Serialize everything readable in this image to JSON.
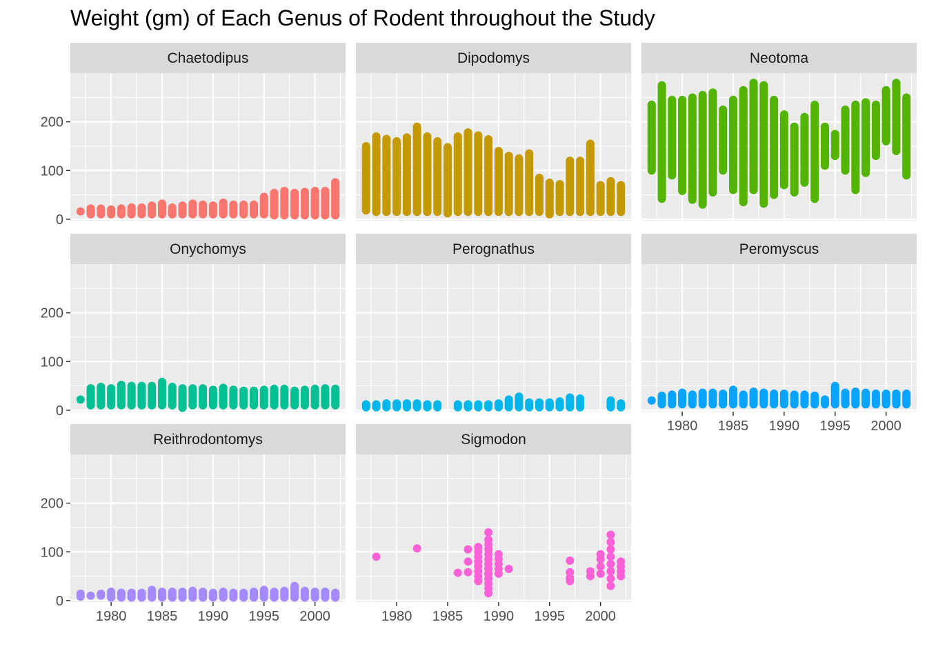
{
  "chart_data": {
    "type": "scatter",
    "title": "Weight (gm) of Each Genus of Rodent throughout the Study",
    "xlabel": "",
    "ylabel": "",
    "xlim": [
      1976,
      2003
    ],
    "ylim": [
      -3,
      300
    ],
    "x_ticks": [
      1980,
      1985,
      1990,
      1995,
      2000
    ],
    "y_ticks": [
      0,
      100,
      200
    ],
    "grid": true,
    "legend": "none",
    "panels": [
      {
        "name": "Chaetodipus",
        "color": "#F8766D",
        "x": [
          1977,
          1978,
          1979,
          1980,
          1981,
          1982,
          1983,
          1984,
          1985,
          1986,
          1987,
          1988,
          1989,
          1990,
          1991,
          1992,
          1993,
          1994,
          1995,
          1996,
          1997,
          1998,
          1999,
          2000,
          2001,
          2002
        ],
        "y_min": [
          16,
          10,
          10,
          10,
          10,
          10,
          10,
          10,
          10,
          10,
          10,
          10,
          10,
          10,
          10,
          10,
          10,
          10,
          10,
          8,
          8,
          8,
          8,
          8,
          8,
          8
        ],
        "y_max": [
          16,
          22,
          22,
          20,
          22,
          24,
          24,
          28,
          32,
          24,
          28,
          32,
          30,
          28,
          34,
          30,
          30,
          30,
          46,
          54,
          58,
          54,
          56,
          58,
          58,
          76
        ]
      },
      {
        "name": "Dipodomys",
        "color": "#C49A00",
        "x": [
          1977,
          1978,
          1979,
          1980,
          1981,
          1982,
          1983,
          1984,
          1985,
          1986,
          1987,
          1988,
          1989,
          1990,
          1991,
          1992,
          1993,
          1994,
          1995,
          1996,
          1997,
          1998,
          1999,
          2000,
          2001,
          2002
        ],
        "y_min": [
          18,
          15,
          15,
          15,
          15,
          15,
          15,
          15,
          12,
          15,
          15,
          15,
          15,
          15,
          15,
          15,
          15,
          15,
          10,
          15,
          15,
          15,
          15,
          15,
          15,
          15
        ],
        "y_max": [
          150,
          170,
          165,
          160,
          168,
          190,
          170,
          160,
          148,
          170,
          178,
          172,
          164,
          140,
          130,
          125,
          135,
          85,
          75,
          72,
          120,
          120,
          155,
          70,
          78,
          70
        ]
      },
      {
        "name": "Neotoma",
        "color": "#53B400",
        "x": [
          1977,
          1978,
          1979,
          1980,
          1981,
          1982,
          1983,
          1984,
          1985,
          1986,
          1987,
          1988,
          1989,
          1990,
          1991,
          1992,
          1993,
          1994,
          1995,
          1996,
          1997,
          1998,
          1999,
          2000,
          2001,
          2002
        ],
        "y_min": [
          100,
          42,
          90,
          58,
          40,
          30,
          55,
          100,
          60,
          35,
          60,
          32,
          50,
          70,
          55,
          75,
          42,
          110,
          130,
          100,
          60,
          95,
          130,
          160,
          140,
          90
        ],
        "y_max": [
          235,
          275,
          245,
          245,
          250,
          255,
          260,
          225,
          245,
          265,
          280,
          275,
          245,
          215,
          190,
          210,
          235,
          190,
          175,
          225,
          235,
          240,
          235,
          265,
          280,
          250
        ]
      },
      {
        "name": "Onychomys",
        "color": "#00C094",
        "x": [
          1977,
          1978,
          1979,
          1980,
          1981,
          1982,
          1983,
          1984,
          1985,
          1986,
          1987,
          1988,
          1989,
          1990,
          1991,
          1992,
          1993,
          1994,
          1995,
          1996,
          1997,
          1998,
          1999,
          2000,
          2001,
          2002
        ],
        "y_min": [
          22,
          10,
          10,
          10,
          10,
          10,
          10,
          10,
          10,
          10,
          5,
          10,
          10,
          10,
          10,
          10,
          10,
          10,
          10,
          10,
          10,
          10,
          10,
          10,
          10,
          10
        ],
        "y_max": [
          22,
          45,
          48,
          45,
          52,
          50,
          50,
          50,
          58,
          48,
          45,
          45,
          45,
          42,
          46,
          42,
          40,
          40,
          42,
          44,
          44,
          40,
          42,
          44,
          45,
          44
        ]
      },
      {
        "name": "Perognathus",
        "color": "#00B6EB",
        "x": [
          1977,
          1978,
          1979,
          1980,
          1981,
          1982,
          1983,
          1984,
          1986,
          1987,
          1988,
          1989,
          1990,
          1991,
          1992,
          1993,
          1994,
          1995,
          1996,
          1997,
          1998,
          2001,
          2002
        ],
        "y_min": [
          6,
          6,
          6,
          6,
          6,
          6,
          6,
          6,
          6,
          6,
          6,
          6,
          6,
          6,
          6,
          6,
          6,
          6,
          6,
          6,
          6,
          6,
          6
        ],
        "y_max": [
          12,
          12,
          14,
          14,
          14,
          14,
          12,
          12,
          12,
          12,
          12,
          12,
          14,
          22,
          28,
          16,
          16,
          16,
          18,
          26,
          24,
          20,
          14
        ]
      },
      {
        "name": "Peromyscus",
        "color": "#06A4FF",
        "x": [
          1977,
          1978,
          1979,
          1980,
          1981,
          1982,
          1983,
          1984,
          1985,
          1986,
          1987,
          1988,
          1989,
          1990,
          1991,
          1992,
          1993,
          1994,
          1995,
          1996,
          1997,
          1998,
          1999,
          2000,
          2001,
          2002
        ],
        "y_min": [
          20,
          12,
          12,
          12,
          12,
          12,
          12,
          12,
          12,
          12,
          12,
          12,
          12,
          12,
          12,
          12,
          12,
          12,
          12,
          12,
          12,
          12,
          12,
          12,
          12,
          12
        ],
        "y_max": [
          20,
          30,
          32,
          36,
          32,
          36,
          36,
          34,
          42,
          32,
          38,
          36,
          34,
          34,
          32,
          32,
          30,
          22,
          50,
          36,
          38,
          36,
          34,
          34,
          34,
          34
        ]
      },
      {
        "name": "Reithrodontomys",
        "color": "#A58AFF",
        "x": [
          1977,
          1978,
          1979,
          1980,
          1981,
          1982,
          1983,
          1984,
          1985,
          1986,
          1987,
          1988,
          1989,
          1990,
          1991,
          1992,
          1993,
          1994,
          1995,
          1996,
          1997,
          1998,
          1999,
          2000,
          2001,
          2002
        ],
        "y_min": [
          8,
          10,
          10,
          6,
          6,
          6,
          6,
          6,
          6,
          6,
          6,
          6,
          6,
          6,
          6,
          6,
          6,
          6,
          6,
          6,
          6,
          6,
          6,
          6,
          6,
          6
        ],
        "y_max": [
          14,
          10,
          14,
          18,
          16,
          16,
          16,
          22,
          18,
          18,
          18,
          20,
          18,
          16,
          18,
          16,
          16,
          18,
          22,
          18,
          20,
          30,
          20,
          18,
          18,
          16
        ]
      },
      {
        "name": "Sigmodon",
        "color": "#FB61D7",
        "points": [
          [
            1978,
            90
          ],
          [
            1982,
            107
          ],
          [
            1986,
            57
          ],
          [
            1987,
            58
          ],
          [
            1987,
            80
          ],
          [
            1987,
            105
          ],
          [
            1988,
            40
          ],
          [
            1988,
            50
          ],
          [
            1988,
            60
          ],
          [
            1988,
            70
          ],
          [
            1988,
            80
          ],
          [
            1988,
            90
          ],
          [
            1988,
            100
          ],
          [
            1988,
            110
          ],
          [
            1989,
            15
          ],
          [
            1989,
            25
          ],
          [
            1989,
            35
          ],
          [
            1989,
            45
          ],
          [
            1989,
            55
          ],
          [
            1989,
            65
          ],
          [
            1989,
            75
          ],
          [
            1989,
            85
          ],
          [
            1989,
            95
          ],
          [
            1989,
            105
          ],
          [
            1989,
            115
          ],
          [
            1989,
            125
          ],
          [
            1989,
            140
          ],
          [
            1990,
            55
          ],
          [
            1990,
            65
          ],
          [
            1990,
            75
          ],
          [
            1990,
            85
          ],
          [
            1990,
            95
          ],
          [
            1991,
            65
          ],
          [
            1997,
            40
          ],
          [
            1997,
            47
          ],
          [
            1997,
            58
          ],
          [
            1997,
            82
          ],
          [
            1999,
            50
          ],
          [
            1999,
            60
          ],
          [
            2000,
            55
          ],
          [
            2000,
            70
          ],
          [
            2000,
            85
          ],
          [
            2000,
            95
          ],
          [
            2001,
            30
          ],
          [
            2001,
            45
          ],
          [
            2001,
            60
          ],
          [
            2001,
            75
          ],
          [
            2001,
            90
          ],
          [
            2001,
            105
          ],
          [
            2001,
            120
          ],
          [
            2001,
            135
          ],
          [
            2002,
            50
          ],
          [
            2002,
            60
          ],
          [
            2002,
            70
          ],
          [
            2002,
            80
          ]
        ]
      }
    ]
  }
}
